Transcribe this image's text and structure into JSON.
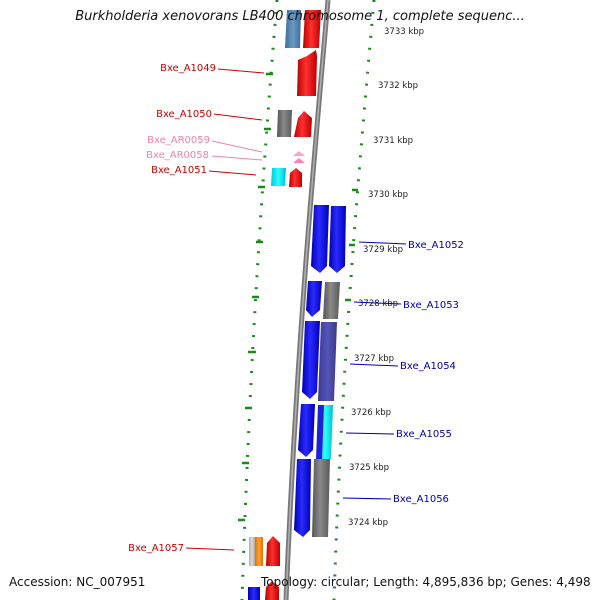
{
  "title": "Burkholderia xenovorans LB400 chromosome 1, complete sequenc...",
  "footer": {
    "accession": "Accession: NC_007951",
    "summary": "Topology: circular; Length: 4,895,836 bp; Genes: 4,498"
  },
  "colors": {
    "forward_gene_label": "#cc0000",
    "reverse_gene_label": "#0000aa",
    "rna_label": "#ee82aa",
    "backbone": "#888888",
    "gc_dots": "#007700",
    "cds_forward": "#ff0000",
    "cds_reverse": "#0000ff",
    "other": "#707070"
  },
  "scale": {
    "unit": "kbp",
    "ticks": [
      "3733 kbp",
      "3732 kbp",
      "3731 kbp",
      "3730 kbp",
      "3729 kbp",
      "3728 kbp",
      "3727 kbp",
      "3726 kbp",
      "3725 kbp",
      "3724 kbp"
    ]
  },
  "gene_labels": {
    "left": [
      "Bxe_A1049",
      "Bxe_A1050",
      "Bxe_AR0059",
      "Bxe_AR0058",
      "Bxe_A1051",
      "Bxe_A1057"
    ],
    "right": [
      "Bxe_A1052",
      "Bxe_A1053",
      "Bxe_A1054",
      "Bxe_A1055",
      "Bxe_A1056"
    ]
  }
}
